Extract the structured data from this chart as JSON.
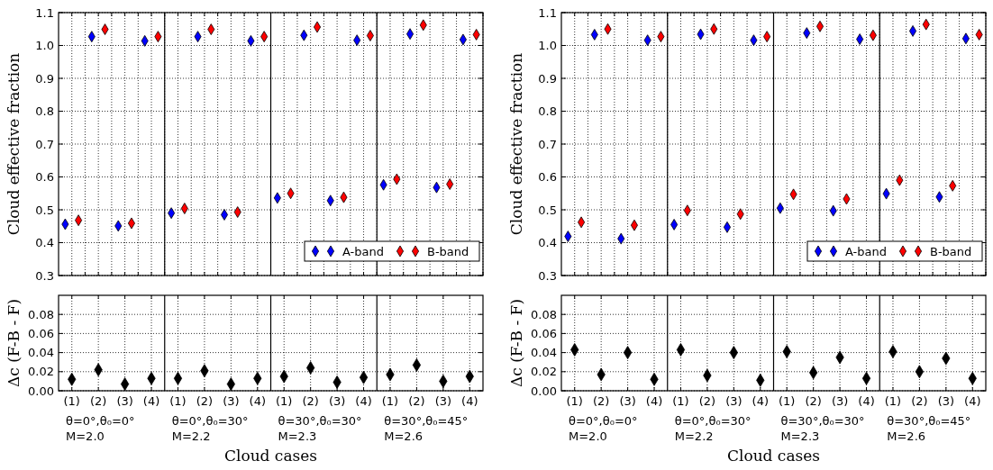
{
  "chart_data": [
    {
      "type": "scatter",
      "ylabel": "Cloud effective fraction",
      "categories": [
        null,
        null,
        null,
        null,
        null,
        null,
        null,
        null,
        null,
        null,
        null,
        null,
        null,
        null,
        null,
        null,
        null,
        null,
        null,
        null,
        null,
        null,
        null,
        null,
        null,
        null,
        null,
        null,
        null,
        null,
        null,
        null
      ],
      "ylim": [
        0.3,
        1.1
      ],
      "yticks": [
        0.3,
        0.4,
        0.5,
        0.6,
        0.7,
        0.8,
        0.9,
        {
          "value": 1,
          "label": "1.0"
        },
        1.1
      ],
      "tick_labels": "y",
      "grid": true,
      "legend": "bottom right",
      "marker": "diamond",
      "series": [
        {
          "name": "A-band",
          "color": "#0000ff",
          "values": [
            0.456,
            null,
            1.027,
            null,
            0.451,
            null,
            1.014,
            null,
            0.49,
            null,
            1.027,
            null,
            0.485,
            null,
            1.014,
            null,
            0.536,
            null,
            1.031,
            null,
            0.528,
            null,
            1.016,
            null,
            0.576,
            null,
            1.035,
            null,
            0.568,
            null,
            1.018,
            null
          ]
        },
        {
          "name": "B-band",
          "color": "#ff0000",
          "values": [
            null,
            0.468,
            null,
            1.049,
            null,
            0.459,
            null,
            1.027,
            null,
            0.504,
            null,
            1.049,
            null,
            0.493,
            null,
            1.027,
            null,
            0.55,
            null,
            1.056,
            null,
            0.538,
            null,
            1.03,
            null,
            0.593,
            null,
            1.062,
            null,
            0.578,
            null,
            1.033
          ]
        }
      ]
    },
    {
      "type": "scatter",
      "ylabel": "Δc (F-B - F)",
      "xlabel": "Cloud cases",
      "categories": [
        "(1)",
        "(2)",
        "(3)",
        "(4)",
        "(1)",
        "(2)",
        "(3)",
        "(4)",
        "(1)",
        "(2)",
        "(3)",
        "(4)",
        "(1)",
        "(2)",
        "(3)",
        "(4)"
      ],
      "ylim": [
        0,
        0.1
      ],
      "yticks": [
        {
          "value": 0,
          "label": "0.00"
        },
        {
          "value": 0.02,
          "label": "0.02"
        },
        {
          "value": 0.04,
          "label": "0.04"
        },
        {
          "value": 0.06,
          "label": "0.06"
        },
        {
          "value": 0.08,
          "label": "0.08"
        }
      ],
      "grid": true,
      "marker": "diamond",
      "annotations": [
        "θ=0°,θ₀=0°\nM=2.0",
        "θ=0°,θ₀=30°\nM=2.2",
        "θ=30°,θ₀=30°\nM=2.3",
        "θ=30°,θ₀=45°\nM=2.6"
      ],
      "series": [
        {
          "color": "#000000",
          "values": [
            0.012,
            0.022,
            0.007,
            0.013,
            0.013,
            0.021,
            0.007,
            0.013,
            0.015,
            0.024,
            0.009,
            0.014,
            0.017,
            0.027,
            0.01,
            0.015
          ]
        }
      ]
    },
    {
      "type": "scatter",
      "ylabel": "Cloud effective fraction",
      "categories": [
        null,
        null,
        null,
        null,
        null,
        null,
        null,
        null,
        null,
        null,
        null,
        null,
        null,
        null,
        null,
        null,
        null,
        null,
        null,
        null,
        null,
        null,
        null,
        null,
        null,
        null,
        null,
        null,
        null,
        null,
        null,
        null
      ],
      "ylim": [
        0.3,
        1.1
      ],
      "yticks": [
        0.3,
        0.4,
        0.5,
        0.6,
        0.7,
        0.8,
        0.9,
        {
          "value": 1,
          "label": "1.0"
        },
        1.1
      ],
      "tick_labels": "y",
      "grid": true,
      "legend": "bottom right",
      "marker": "diamond",
      "series": [
        {
          "name": "A-band",
          "color": "#0000ff",
          "values": [
            0.419,
            null,
            1.033,
            null,
            0.412,
            null,
            1.016,
            null,
            0.455,
            null,
            1.034,
            null,
            0.447,
            null,
            1.016,
            null,
            0.505,
            null,
            1.038,
            null,
            0.497,
            null,
            1.019,
            null,
            0.549,
            null,
            1.044,
            null,
            0.539,
            null,
            1.021,
            null
          ]
        },
        {
          "name": "B-band",
          "color": "#ff0000",
          "values": [
            null,
            0.462,
            null,
            1.05,
            null,
            0.453,
            null,
            1.027,
            null,
            0.498,
            null,
            1.05,
            null,
            0.487,
            null,
            1.027,
            null,
            0.547,
            null,
            1.058,
            null,
            0.533,
            null,
            1.031,
            null,
            0.59,
            null,
            1.064,
            null,
            0.573,
            null,
            1.033
          ]
        }
      ]
    },
    {
      "type": "scatter",
      "ylabel": "Δc (F-B - F)",
      "xlabel": "Cloud cases",
      "categories": [
        "(1)",
        "(2)",
        "(3)",
        "(4)",
        "(1)",
        "(2)",
        "(3)",
        "(4)",
        "(1)",
        "(2)",
        "(3)",
        "(4)",
        "(1)",
        "(2)",
        "(3)",
        "(4)"
      ],
      "ylim": [
        0,
        0.1
      ],
      "yticks": [
        {
          "value": 0,
          "label": "0.00"
        },
        {
          "value": 0.02,
          "label": "0.02"
        },
        {
          "value": 0.04,
          "label": "0.04"
        },
        {
          "value": 0.06,
          "label": "0.06"
        },
        {
          "value": 0.08,
          "label": "0.08"
        }
      ],
      "grid": true,
      "marker": "diamond",
      "annotations": [
        "θ=0°,θ₀=0°\nM=2.0",
        "θ=0°,θ₀=30°\nM=2.2",
        "θ=30°,θ₀=30°\nM=2.3",
        "θ=30°,θ₀=45°\nM=2.6"
      ],
      "series": [
        {
          "color": "#000000",
          "values": [
            0.043,
            0.017,
            0.04,
            0.012,
            0.043,
            0.016,
            0.04,
            0.011,
            0.041,
            0.019,
            0.035,
            0.013,
            0.041,
            0.02,
            0.034,
            0.013
          ]
        }
      ]
    }
  ]
}
